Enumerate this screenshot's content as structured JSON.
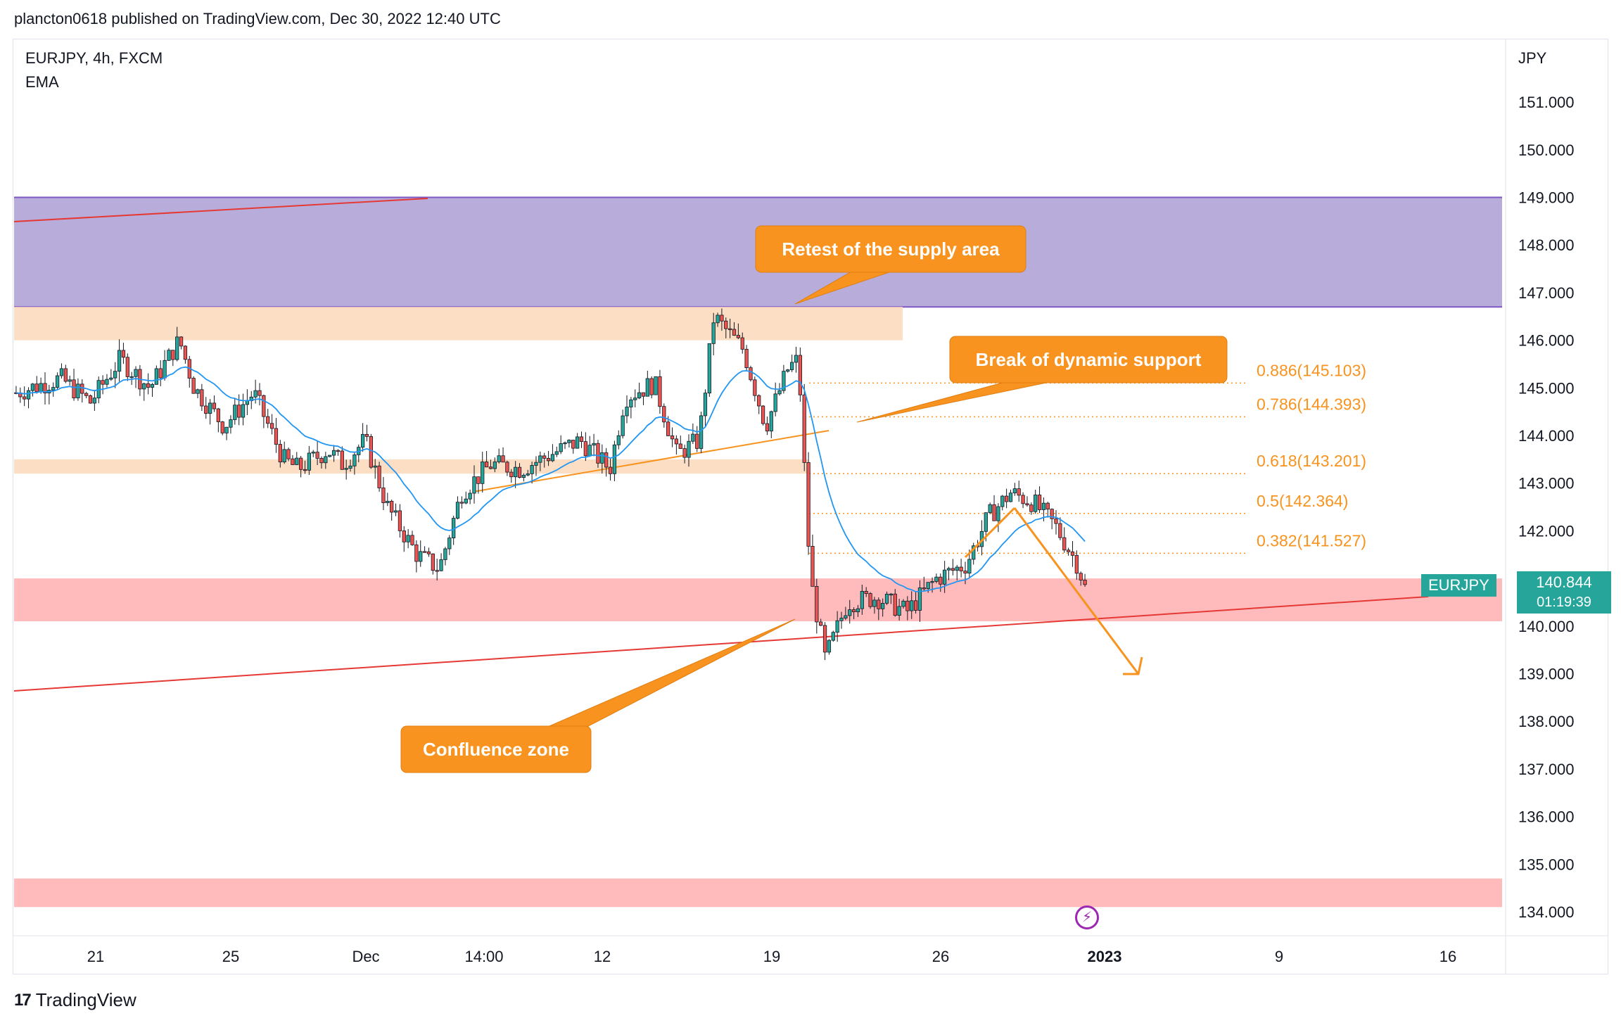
{
  "header": {
    "published_text": "plancton0618 published on TradingView.com, Dec 30, 2022 12:40 UTC"
  },
  "legend": {
    "symbol_line": "EURJPY, 4h, FXCM",
    "indicator_line": "EMA"
  },
  "footer": {
    "brand": "TradingView"
  },
  "price_badge": {
    "symbol": "EURJPY",
    "price": "140.844",
    "countdown": "01:19:39"
  },
  "colors": {
    "up": "#26a69a",
    "down": "#ef5350",
    "ema": "#2196f3",
    "fib": "#f7931e",
    "supply": "#b3a8d8",
    "zone_orange": "#fbdcc0",
    "zone_red": "#ffb6b8",
    "trend_red": "#e53935"
  },
  "annotations": {
    "retest": "Retest of the supply area",
    "break": "Break of dynamic support",
    "confluence": "Confluence zone"
  },
  "chart_data": {
    "type": "candlestick",
    "symbol": "EURJPY",
    "timeframe": "4h",
    "axis_unit": "JPY",
    "ylim": [
      133.6,
      152.0
    ],
    "y_ticks": [
      "151.000",
      "150.000",
      "149.000",
      "148.000",
      "147.000",
      "146.000",
      "145.000",
      "144.000",
      "143.000",
      "142.000",
      "141.000",
      "140.000",
      "139.000",
      "138.000",
      "137.000",
      "136.000",
      "135.000",
      "134.000"
    ],
    "x_ticks": [
      "21",
      "25",
      "Dec",
      "14:00",
      "12",
      "19",
      "26",
      "2023",
      "9",
      "16"
    ],
    "last_price": 140.844,
    "fib_levels": [
      {
        "label": "0.886(145.103)",
        "value": 145.103
      },
      {
        "label": "0.786(144.393)",
        "value": 144.393
      },
      {
        "label": "0.618(143.201)",
        "value": 143.201
      },
      {
        "label": "0.5(142.364)",
        "value": 142.364
      },
      {
        "label": "0.382(141.527)",
        "value": 141.527
      }
    ],
    "zones": [
      {
        "name": "supply",
        "from": 146.7,
        "to": 149.0
      },
      {
        "name": "resistance",
        "from": 146.0,
        "to": 146.7
      },
      {
        "name": "support-1",
        "from": 143.2,
        "to": 143.5
      },
      {
        "name": "confluence",
        "from": 140.1,
        "to": 141.0
      },
      {
        "name": "lower-demand",
        "from": 134.1,
        "to": 134.7
      }
    ],
    "close_path": [
      [
        0,
        144.9
      ],
      [
        0.03,
        145.2
      ],
      [
        0.05,
        144.7
      ],
      [
        0.07,
        145.6
      ],
      [
        0.09,
        145.0
      ],
      [
        0.11,
        146.0
      ],
      [
        0.12,
        145.0
      ],
      [
        0.14,
        144.2
      ],
      [
        0.16,
        144.9
      ],
      [
        0.18,
        143.5
      ],
      [
        0.19,
        143.3
      ],
      [
        0.21,
        143.7
      ],
      [
        0.22,
        143.4
      ],
      [
        0.235,
        143.9
      ],
      [
        0.25,
        142.5
      ],
      [
        0.27,
        141.5
      ],
      [
        0.285,
        141.2
      ],
      [
        0.3,
        142.8
      ],
      [
        0.32,
        143.4
      ],
      [
        0.34,
        143.3
      ],
      [
        0.36,
        143.6
      ],
      [
        0.38,
        143.9
      ],
      [
        0.4,
        143.3
      ],
      [
        0.41,
        144.8
      ],
      [
        0.43,
        145.1
      ],
      [
        0.445,
        143.6
      ],
      [
        0.46,
        143.9
      ],
      [
        0.47,
        146.5
      ],
      [
        0.49,
        145.8
      ],
      [
        0.505,
        144.2
      ],
      [
        0.52,
        145.4
      ],
      [
        0.527,
        145.6
      ],
      [
        0.535,
        141.0
      ],
      [
        0.545,
        139.3
      ],
      [
        0.56,
        140.5
      ],
      [
        0.58,
        140.6
      ],
      [
        0.6,
        140.3
      ],
      [
        0.62,
        141.0
      ],
      [
        0.64,
        141.3
      ],
      [
        0.655,
        142.3
      ],
      [
        0.67,
        142.8
      ],
      [
        0.685,
        142.6
      ],
      [
        0.7,
        142.1
      ],
      [
        0.715,
        141.3
      ],
      [
        0.72,
        140.8
      ]
    ]
  }
}
